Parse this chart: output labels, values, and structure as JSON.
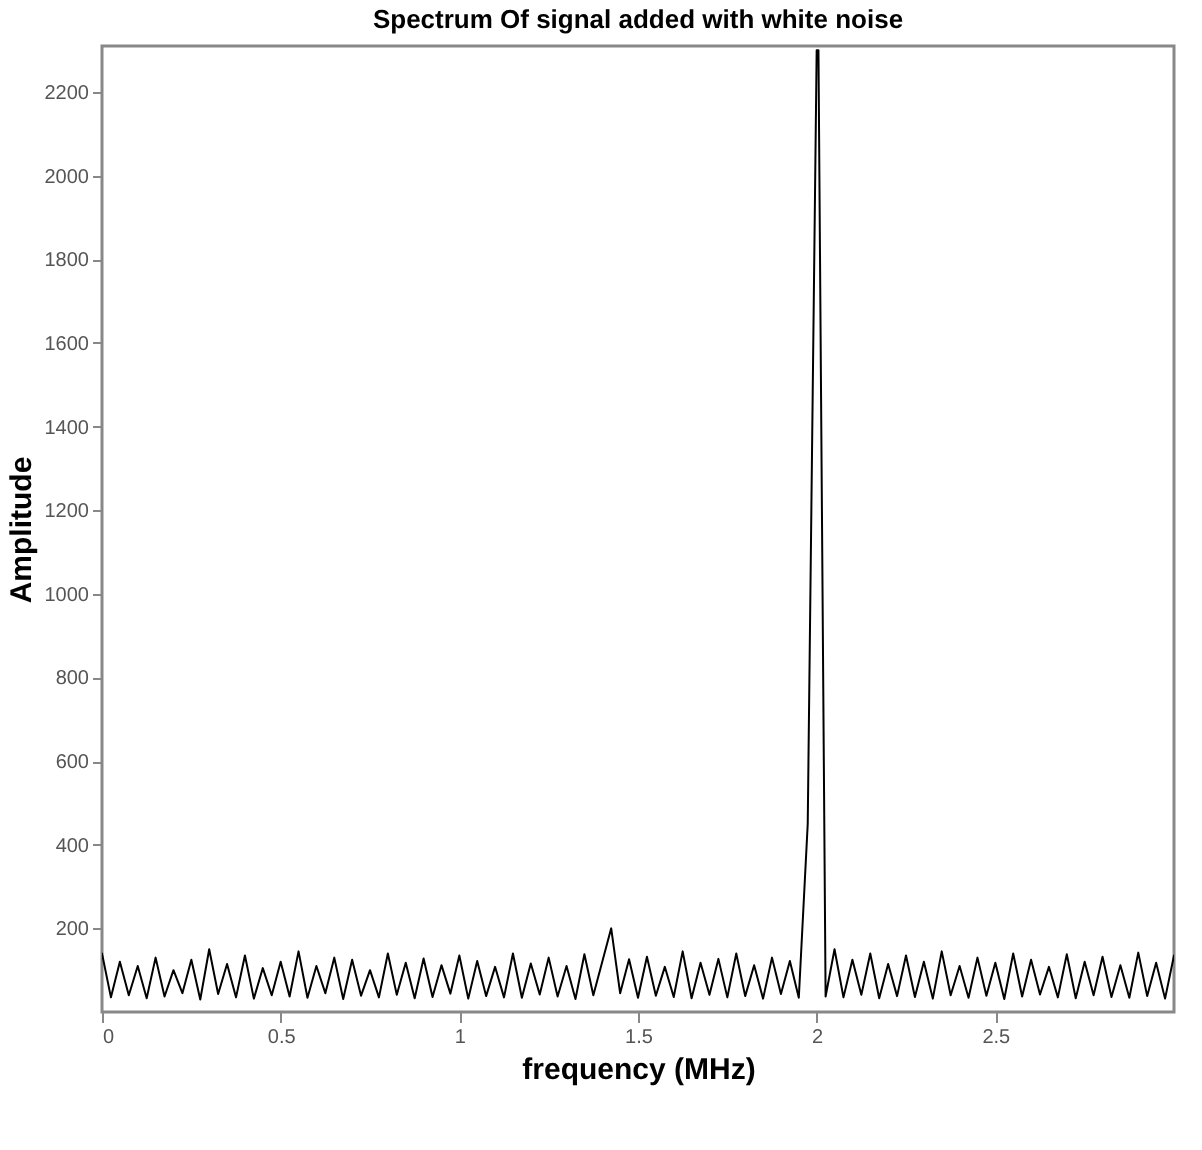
{
  "chart_data": {
    "type": "line",
    "title": "Spectrum Of signal added with white noise",
    "xlabel": "frequency (MHz)",
    "ylabel": "Amplitude",
    "xlim": [
      0,
      3
    ],
    "xticks": [
      0,
      0.5,
      1,
      1.5,
      2,
      2.5
    ],
    "ylim": [
      0,
      2310
    ],
    "yticks": [
      200,
      400,
      600,
      800,
      1000,
      1200,
      1400,
      1600,
      1800,
      2000,
      2200
    ],
    "grid": false,
    "series": [
      {
        "color": "#000000",
        "x": [
          0,
          0.025,
          0.05,
          0.075,
          0.1,
          0.125,
          0.15,
          0.175,
          0.2,
          0.225,
          0.25,
          0.275,
          0.3,
          0.325,
          0.35,
          0.375,
          0.4,
          0.425,
          0.45,
          0.475,
          0.5,
          0.525,
          0.55,
          0.575,
          0.6,
          0.625,
          0.65,
          0.675,
          0.7,
          0.725,
          0.75,
          0.775,
          0.8,
          0.825,
          0.85,
          0.875,
          0.9,
          0.925,
          0.95,
          0.975,
          1,
          1.025,
          1.05,
          1.075,
          1.1,
          1.125,
          1.15,
          1.175,
          1.2,
          1.225,
          1.25,
          1.275,
          1.3,
          1.325,
          1.35,
          1.375,
          1.4,
          1.425,
          1.45,
          1.475,
          1.5,
          1.525,
          1.55,
          1.575,
          1.6,
          1.625,
          1.65,
          1.675,
          1.7,
          1.725,
          1.75,
          1.775,
          1.8,
          1.825,
          1.85,
          1.875,
          1.9,
          1.925,
          1.95,
          1.975,
          2,
          2.005,
          2.025,
          2.05,
          2.075,
          2.1,
          2.125,
          2.15,
          2.175,
          2.2,
          2.225,
          2.25,
          2.275,
          2.3,
          2.325,
          2.35,
          2.375,
          2.4,
          2.425,
          2.45,
          2.475,
          2.5,
          2.525,
          2.55,
          2.575,
          2.6,
          2.625,
          2.65,
          2.675,
          2.7,
          2.725,
          2.75,
          2.775,
          2.8,
          2.825,
          2.85,
          2.875,
          2.9,
          2.925,
          2.95,
          2.975,
          3
        ],
        "values": [
          140,
          35,
          120,
          40,
          110,
          33,
          130,
          37,
          100,
          45,
          125,
          30,
          150,
          43,
          115,
          35,
          135,
          32,
          105,
          40,
          120,
          37,
          145,
          34,
          110,
          45,
          130,
          31,
          125,
          39,
          100,
          35,
          140,
          41,
          118,
          33,
          128,
          36,
          112,
          44,
          135,
          32,
          122,
          38,
          108,
          35,
          140,
          34,
          116,
          42,
          130,
          37,
          110,
          31,
          138,
          40,
          120,
          200,
          45,
          126,
          34,
          132,
          39,
          108,
          36,
          145,
          33,
          118,
          41,
          127,
          35,
          140,
          38,
          112,
          32,
          130,
          43,
          122,
          34,
          450,
          2300,
          2300,
          37,
          150,
          35,
          125,
          41,
          140,
          33,
          115,
          38,
          135,
          36,
          120,
          32,
          145,
          40,
          110,
          34,
          130,
          39,
          118,
          31,
          140,
          37,
          125,
          42,
          108,
          35,
          138,
          33,
          120,
          40,
          132,
          36,
          112,
          34,
          142,
          38,
          118,
          32,
          135
        ]
      }
    ]
  }
}
